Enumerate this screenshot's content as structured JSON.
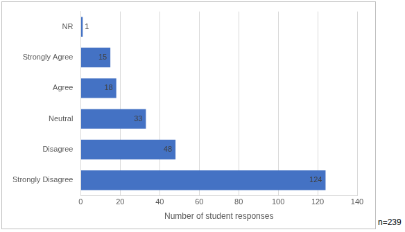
{
  "chart_data": {
    "type": "bar",
    "orientation": "horizontal",
    "categories": [
      "NR",
      "Strongly Agree",
      "Agree",
      "Neutral",
      "Disagree",
      "Strongly Disagree"
    ],
    "values": [
      1,
      15,
      18,
      33,
      48,
      124
    ],
    "color": "#4472c4",
    "x_label": "Number of student responses",
    "annotation": "n=239",
    "xlim": [
      0,
      140
    ],
    "xticks": [
      0,
      20,
      40,
      60,
      80,
      100,
      120,
      140
    ],
    "grid": true,
    "data_labels": true
  }
}
